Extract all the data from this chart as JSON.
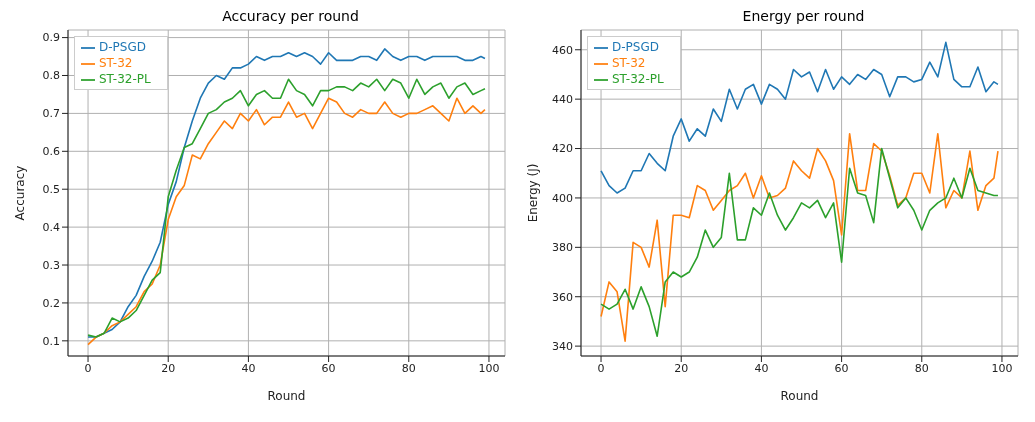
{
  "chart_data": [
    {
      "type": "line",
      "title": "Accuracy per round",
      "xlabel": "Round",
      "ylabel": "Accuracy",
      "x": [
        0,
        2,
        4,
        6,
        8,
        10,
        12,
        14,
        16,
        18,
        20,
        22,
        24,
        26,
        28,
        30,
        32,
        34,
        36,
        38,
        40,
        42,
        44,
        46,
        48,
        50,
        52,
        54,
        56,
        58,
        60,
        62,
        64,
        66,
        68,
        70,
        72,
        74,
        76,
        78,
        80,
        82,
        84,
        86,
        88,
        90,
        92,
        94,
        96,
        98,
        99
      ],
      "xlim": [
        -5,
        104
      ],
      "xticks": [
        0,
        20,
        40,
        60,
        80,
        100
      ],
      "ylim": [
        0.06,
        0.92
      ],
      "yticks": [
        0.1,
        0.2,
        0.3,
        0.4,
        0.5,
        0.6,
        0.7,
        0.8,
        0.9
      ],
      "grid": true,
      "legend": "top left",
      "line_style": "solid",
      "series": [
        {
          "name": "D-PSGD",
          "color": "#1f77b4",
          "values": [
            0.11,
            0.11,
            0.12,
            0.13,
            0.15,
            0.19,
            0.22,
            0.27,
            0.31,
            0.36,
            0.46,
            0.52,
            0.61,
            0.68,
            0.74,
            0.78,
            0.8,
            0.79,
            0.82,
            0.82,
            0.83,
            0.85,
            0.84,
            0.85,
            0.85,
            0.86,
            0.85,
            0.86,
            0.85,
            0.83,
            0.86,
            0.84,
            0.84,
            0.84,
            0.85,
            0.85,
            0.84,
            0.87,
            0.85,
            0.84,
            0.85,
            0.85,
            0.84,
            0.85,
            0.85,
            0.85,
            0.85,
            0.84,
            0.84,
            0.85,
            0.845
          ]
        },
        {
          "name": "ST-32",
          "color": "#ff7f0e",
          "values": [
            0.09,
            0.11,
            0.12,
            0.14,
            0.15,
            0.17,
            0.19,
            0.23,
            0.25,
            0.3,
            0.42,
            0.48,
            0.51,
            0.59,
            0.58,
            0.62,
            0.65,
            0.68,
            0.66,
            0.7,
            0.68,
            0.71,
            0.67,
            0.69,
            0.69,
            0.73,
            0.69,
            0.7,
            0.66,
            0.7,
            0.74,
            0.73,
            0.7,
            0.69,
            0.71,
            0.7,
            0.7,
            0.73,
            0.7,
            0.69,
            0.7,
            0.7,
            0.71,
            0.72,
            0.7,
            0.68,
            0.74,
            0.7,
            0.72,
            0.7,
            0.71
          ]
        },
        {
          "name": "ST-32-PL",
          "color": "#2ca02c",
          "values": [
            0.115,
            0.11,
            0.12,
            0.16,
            0.15,
            0.16,
            0.18,
            0.22,
            0.26,
            0.28,
            0.48,
            0.55,
            0.61,
            0.62,
            0.66,
            0.7,
            0.71,
            0.73,
            0.74,
            0.76,
            0.72,
            0.75,
            0.76,
            0.74,
            0.74,
            0.79,
            0.76,
            0.75,
            0.72,
            0.76,
            0.76,
            0.77,
            0.77,
            0.76,
            0.78,
            0.77,
            0.79,
            0.76,
            0.79,
            0.78,
            0.74,
            0.79,
            0.75,
            0.77,
            0.78,
            0.74,
            0.77,
            0.78,
            0.75,
            0.76,
            0.765
          ]
        }
      ]
    },
    {
      "type": "line",
      "title": "Energy per round",
      "xlabel": "Round",
      "ylabel": "Energy (J)",
      "x": [
        0,
        2,
        4,
        6,
        8,
        10,
        12,
        14,
        16,
        18,
        20,
        22,
        24,
        26,
        28,
        30,
        32,
        34,
        36,
        38,
        40,
        42,
        44,
        46,
        48,
        50,
        52,
        54,
        56,
        58,
        60,
        62,
        64,
        66,
        68,
        70,
        72,
        74,
        76,
        78,
        80,
        82,
        84,
        86,
        88,
        90,
        92,
        94,
        96,
        98,
        99
      ],
      "xlim": [
        -5,
        104
      ],
      "xticks": [
        0,
        20,
        40,
        60,
        80,
        100
      ],
      "ylim": [
        336,
        468
      ],
      "yticks": [
        340,
        360,
        380,
        400,
        420,
        440,
        460
      ],
      "grid": true,
      "legend": "top left",
      "line_style": "solid",
      "series": [
        {
          "name": "D-PSGD",
          "color": "#1f77b4",
          "values": [
            411,
            405,
            402,
            404,
            411,
            411,
            418,
            414,
            411,
            425,
            432,
            423,
            428,
            425,
            436,
            431,
            444,
            436,
            444,
            446,
            438,
            446,
            444,
            440,
            452,
            449,
            451,
            443,
            452,
            444,
            449,
            446,
            450,
            448,
            452,
            450,
            441,
            449,
            449,
            447,
            448,
            455,
            449,
            463,
            448,
            445,
            445,
            453,
            443,
            447,
            446
          ]
        },
        {
          "name": "ST-32",
          "color": "#ff7f0e",
          "values": [
            352,
            366,
            362,
            342,
            382,
            380,
            372,
            391,
            356,
            393,
            393,
            392,
            405,
            403,
            395,
            399,
            403,
            405,
            410,
            400,
            409,
            400,
            401,
            404,
            415,
            411,
            408,
            420,
            415,
            407,
            385,
            426,
            403,
            403,
            422,
            419,
            409,
            397,
            400,
            410,
            410,
            402,
            426,
            396,
            403,
            400,
            419,
            395,
            405,
            408,
            419
          ]
        },
        {
          "name": "ST-32-PL",
          "color": "#2ca02c",
          "values": [
            357,
            355,
            357,
            363,
            355,
            364,
            356,
            344,
            366,
            370,
            368,
            370,
            376,
            387,
            380,
            384,
            410,
            383,
            383,
            396,
            393,
            402,
            393,
            387,
            392,
            398,
            396,
            399,
            392,
            398,
            374,
            412,
            402,
            401,
            390,
            420,
            408,
            396,
            400,
            395,
            387,
            395,
            398,
            400,
            408,
            400,
            412,
            403,
            402,
            401,
            401
          ]
        }
      ]
    }
  ]
}
